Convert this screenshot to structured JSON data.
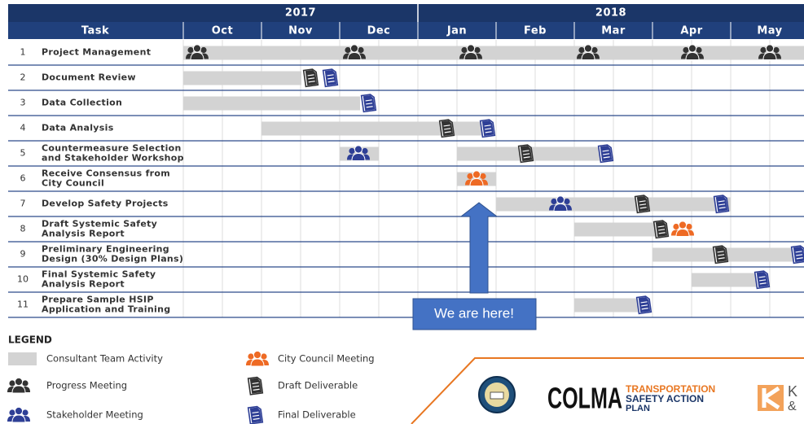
{
  "header": {
    "task_label": "Task",
    "years": [
      "2017",
      "2018"
    ],
    "months": [
      "Oct",
      "Nov",
      "Dec",
      "Jan",
      "Feb",
      "Mar",
      "Apr",
      "May"
    ]
  },
  "tasks": [
    {
      "number": "1",
      "name_lines": [
        "Project Management"
      ]
    },
    {
      "number": "2",
      "name_lines": [
        "Document Review"
      ]
    },
    {
      "number": "3",
      "name_lines": [
        "Data Collection"
      ]
    },
    {
      "number": "4",
      "name_lines": [
        "Data Analysis"
      ]
    },
    {
      "number": "5",
      "name_lines": [
        "Countermeasure Selection",
        "and Stakeholder Workshop"
      ]
    },
    {
      "number": "6",
      "name_lines": [
        "Receive Consensus from",
        "City Council"
      ]
    },
    {
      "number": "7",
      "name_lines": [
        "Develop Safety Projects"
      ]
    },
    {
      "number": "8",
      "name_lines": [
        "Draft Systemic Safety",
        "Analysis Report"
      ]
    },
    {
      "number": "9",
      "name_lines": [
        "Preliminary Engineering",
        "Design (30% Design Plans)"
      ]
    },
    {
      "number": "10",
      "name_lines": [
        "Final Systemic Safety",
        "Analysis Report"
      ]
    },
    {
      "number": "11",
      "name_lines": [
        "Prepare Sample HSIP",
        "Application and Training"
      ]
    }
  ],
  "annotation": "We are here!",
  "legend": {
    "title": "LEGEND",
    "items": [
      "Consultant Team Activity",
      "Progress Meeting",
      "Stakeholder Meeting",
      "City Council Meeting",
      "Draft Deliverable",
      "Final Deliverable"
    ]
  },
  "logo": {
    "name": "COLMA",
    "subtitle_lines": [
      "TRANSPORTATION",
      "SAFETY ACTION",
      "PLAN"
    ],
    "partner_lines": [
      "K",
      "&"
    ]
  }
}
